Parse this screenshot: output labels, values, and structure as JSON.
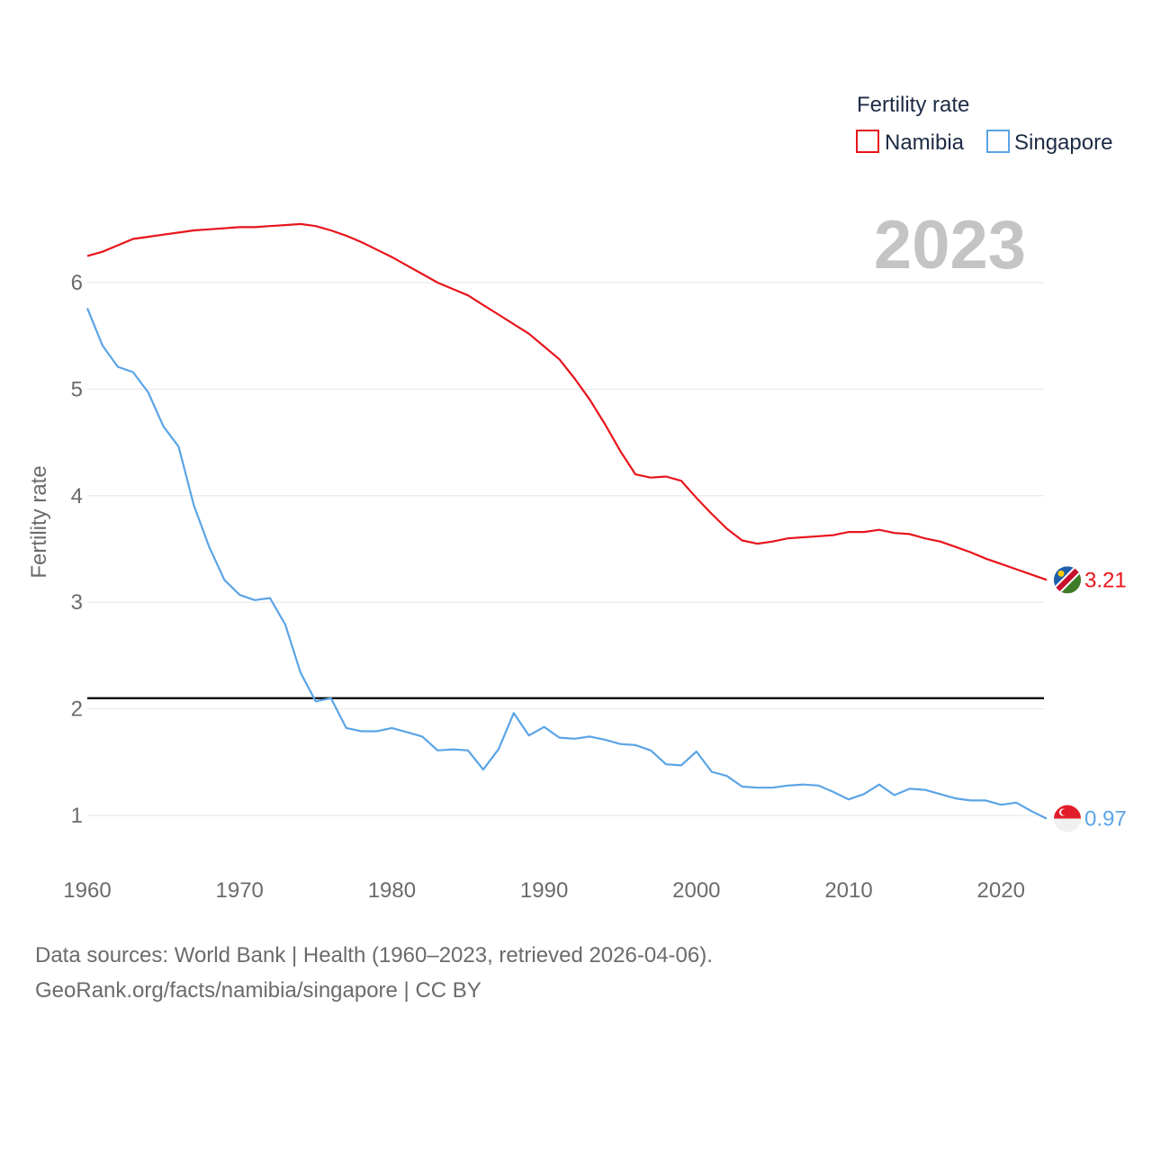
{
  "chart_data": {
    "type": "line",
    "title": "",
    "ylabel": "Fertility rate",
    "xlabel": "",
    "xlim": [
      1960,
      2023
    ],
    "ylim": [
      0.5,
      6.6
    ],
    "x_ticks": [
      1960,
      1970,
      1980,
      1990,
      2000,
      2010,
      2020
    ],
    "y_ticks": [
      1,
      2,
      3,
      4,
      5,
      6
    ],
    "grid": true,
    "year_label": "2023",
    "legend": {
      "title": "Fertility rate",
      "position": "top-right",
      "entries": [
        "Namibia",
        "Singapore"
      ]
    },
    "reference_line": {
      "value": 2.1,
      "color": "#000000"
    },
    "x": [
      1960,
      1961,
      1962,
      1963,
      1964,
      1965,
      1966,
      1967,
      1968,
      1969,
      1970,
      1971,
      1972,
      1973,
      1974,
      1975,
      1976,
      1977,
      1978,
      1979,
      1980,
      1981,
      1982,
      1983,
      1984,
      1985,
      1986,
      1987,
      1988,
      1989,
      1990,
      1991,
      1992,
      1993,
      1994,
      1995,
      1996,
      1997,
      1998,
      1999,
      2000,
      2001,
      2002,
      2003,
      2004,
      2005,
      2006,
      2007,
      2008,
      2009,
      2010,
      2011,
      2012,
      2013,
      2014,
      2015,
      2016,
      2017,
      2018,
      2019,
      2020,
      2021,
      2022,
      2023
    ],
    "series": [
      {
        "name": "Namibia",
        "color": "#e8141b",
        "end_label": "3.21",
        "flag": "namibia-flag-icon",
        "values": [
          6.25,
          6.29,
          6.35,
          6.41,
          6.43,
          6.45,
          6.47,
          6.49,
          6.5,
          6.51,
          6.52,
          6.52,
          6.53,
          6.54,
          6.55,
          6.53,
          6.49,
          6.44,
          6.38,
          6.31,
          6.24,
          6.16,
          6.08,
          6.0,
          5.94,
          5.88,
          5.79,
          5.7,
          5.61,
          5.52,
          5.4,
          5.28,
          5.1,
          4.9,
          4.67,
          4.42,
          4.2,
          4.17,
          4.18,
          4.14,
          3.98,
          3.83,
          3.69,
          3.58,
          3.55,
          3.57,
          3.6,
          3.61,
          3.62,
          3.63,
          3.66,
          3.66,
          3.68,
          3.65,
          3.64,
          3.6,
          3.57,
          3.52,
          3.47,
          3.41,
          3.36,
          3.31,
          3.26,
          3.21
        ]
      },
      {
        "name": "Singapore",
        "color": "#5ba4e6",
        "end_label": "0.97",
        "flag": "singapore-flag-icon",
        "values": [
          5.76,
          5.41,
          5.21,
          5.16,
          4.97,
          4.65,
          4.46,
          3.91,
          3.52,
          3.21,
          3.07,
          3.02,
          3.04,
          2.79,
          2.34,
          2.07,
          2.1,
          1.82,
          1.79,
          1.79,
          1.82,
          1.78,
          1.74,
          1.61,
          1.62,
          1.61,
          1.43,
          1.62,
          1.96,
          1.75,
          1.83,
          1.73,
          1.72,
          1.74,
          1.71,
          1.67,
          1.66,
          1.61,
          1.48,
          1.47,
          1.6,
          1.41,
          1.37,
          1.27,
          1.26,
          1.26,
          1.28,
          1.29,
          1.28,
          1.22,
          1.15,
          1.2,
          1.29,
          1.19,
          1.25,
          1.24,
          1.2,
          1.16,
          1.14,
          1.14,
          1.1,
          1.12,
          1.04,
          0.97
        ]
      }
    ]
  },
  "footer": {
    "line1": "Data sources: World Bank | Health (1960–2023, retrieved 2026-04-06).",
    "line2": "GeoRank.org/facts/namibia/singapore | CC BY"
  }
}
